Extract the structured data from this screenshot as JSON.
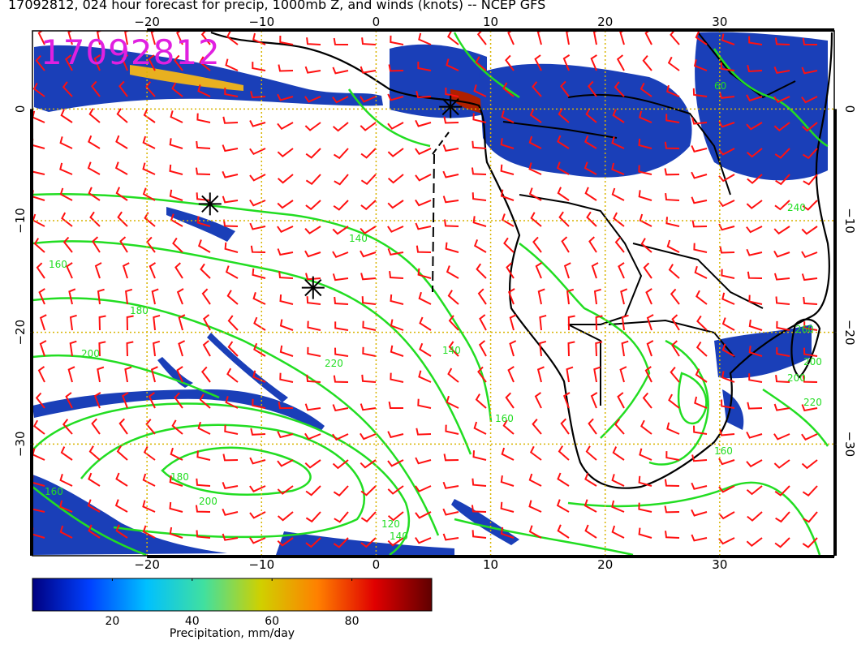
{
  "title": "17092812, 024 hour forecast for precip, 1000mb Z, and winds (knots) -- NCEP GFS",
  "stamp": "17092812",
  "map": {
    "lon_range": [
      -30,
      40
    ],
    "lat_range": [
      -40,
      7
    ],
    "lon_ticks": [
      "−20",
      "−10",
      "0",
      "10",
      "20",
      "30"
    ],
    "lat_ticks": [
      "0",
      "−10",
      "−20",
      "−30"
    ],
    "colors": {
      "contour": "#22dd22",
      "barb": "#ff1010",
      "grid": "#d8b400",
      "coast": "#000000"
    },
    "contour_labels": [
      "140",
      "160",
      "180",
      "200",
      "220",
      "240",
      "260",
      "140",
      "160",
      "180",
      "200",
      "120",
      "140",
      "160",
      "160",
      "200",
      "200",
      "220",
      "60"
    ],
    "markers": [
      {
        "lon": 6.5,
        "lat": 0.2,
        "label": ""
      },
      {
        "lon": -14.5,
        "lat": -8.5,
        "label": ""
      },
      {
        "lon": -5.5,
        "lat": -16.0,
        "label": ""
      }
    ]
  },
  "colorbar": {
    "label": "Precipitation, mm/day",
    "ticks": [
      "20",
      "40",
      "60",
      "80"
    ],
    "tick_values": [
      20,
      40,
      60,
      80
    ],
    "range": [
      0,
      100
    ],
    "stops": [
      "#000080",
      "#0040ff",
      "#00c0ff",
      "#40e0a0",
      "#d0d000",
      "#ff8000",
      "#e00000",
      "#600000"
    ]
  }
}
